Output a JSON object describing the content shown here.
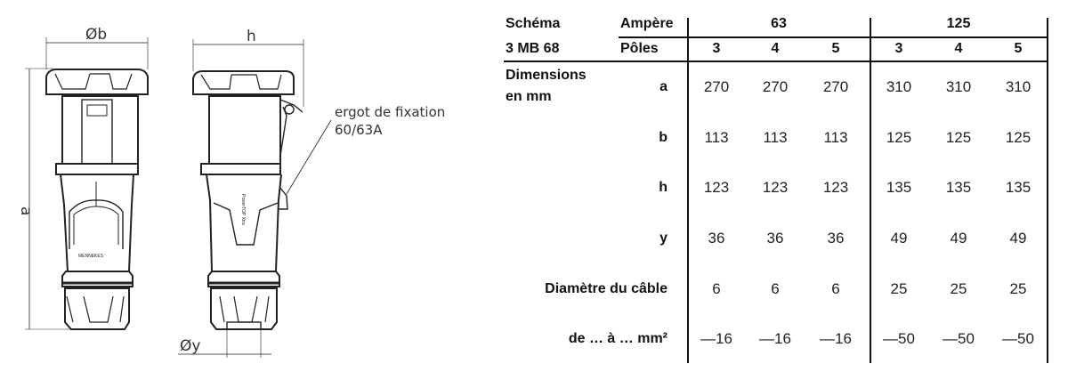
{
  "drawing": {
    "dim_b": "Øb",
    "dim_h": "h",
    "dim_a": "a",
    "dim_y": "Øy",
    "annotation_line1": "ergot de fixation",
    "annotation_line2": "60/63A",
    "brand_mark": "MENNEKES",
    "side_mark": "PowerTOP Xtra"
  },
  "table": {
    "schema_label": "Schéma",
    "schema_value": "3 MB 68",
    "ampere_label": "Ampère",
    "poles_label": "Pôles",
    "dimensions_label_1": "Dimensions",
    "dimensions_label_2": "en mm",
    "groups": [
      "63",
      "125"
    ],
    "poles": [
      "3",
      "4",
      "5",
      "3",
      "4",
      "5"
    ],
    "rows": [
      {
        "label": "a",
        "values": [
          "270",
          "270",
          "270",
          "310",
          "310",
          "310"
        ]
      },
      {
        "label": "b",
        "values": [
          "113",
          "113",
          "113",
          "125",
          "125",
          "125"
        ]
      },
      {
        "label": "h",
        "values": [
          "123",
          "123",
          "123",
          "135",
          "135",
          "135"
        ]
      },
      {
        "label": "y",
        "values": [
          "36",
          "36",
          "36",
          "49",
          "49",
          "49"
        ]
      },
      {
        "label": "Diamètre du câble",
        "values": [
          "6",
          "6",
          "6",
          "25",
          "25",
          "25"
        ]
      },
      {
        "label": "de … à … mm²",
        "values": [
          "—16",
          "—16",
          "—16",
          "—50",
          "—50",
          "—50"
        ]
      }
    ]
  }
}
